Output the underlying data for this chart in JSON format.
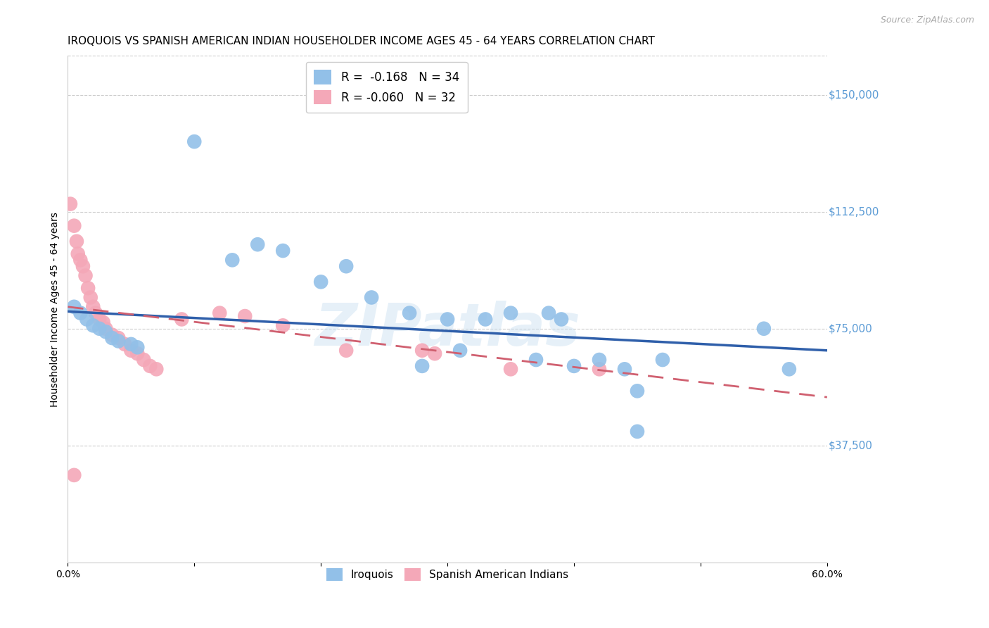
{
  "title": "IROQUOIS VS SPANISH AMERICAN INDIAN HOUSEHOLDER INCOME AGES 45 - 64 YEARS CORRELATION CHART",
  "source": "Source: ZipAtlas.com",
  "ylabel": "Householder Income Ages 45 - 64 years",
  "watermark": "ZIPatlas",
  "xlim": [
    0.0,
    0.6
  ],
  "ylim": [
    0,
    162500
  ],
  "yticks_right": [
    150000,
    112500,
    75000,
    37500
  ],
  "ytick_labels_right": [
    "$150,000",
    "$112,500",
    "$75,000",
    "$37,500"
  ],
  "blue_color": "#92c0e8",
  "pink_color": "#f4a8b8",
  "blue_line_color": "#2f5faa",
  "pink_line_color": "#d06070",
  "legend_R_blue": "-0.168",
  "legend_N_blue": "34",
  "legend_R_pink": "-0.060",
  "legend_N_pink": "32",
  "legend_label_blue": "Iroquois",
  "legend_label_pink": "Spanish American Indians",
  "blue_scatter_x": [
    0.005,
    0.01,
    0.015,
    0.02,
    0.025,
    0.03,
    0.035,
    0.04,
    0.05,
    0.055,
    0.1,
    0.13,
    0.15,
    0.17,
    0.2,
    0.22,
    0.24,
    0.27,
    0.28,
    0.3,
    0.31,
    0.33,
    0.35,
    0.37,
    0.38,
    0.39,
    0.4,
    0.42,
    0.44,
    0.45,
    0.47,
    0.55,
    0.57,
    0.45
  ],
  "blue_scatter_y": [
    82000,
    80000,
    78000,
    76000,
    75000,
    74000,
    72000,
    71000,
    70000,
    69000,
    135000,
    97000,
    102000,
    100000,
    90000,
    95000,
    85000,
    80000,
    63000,
    78000,
    68000,
    78000,
    80000,
    65000,
    80000,
    78000,
    63000,
    65000,
    62000,
    55000,
    65000,
    75000,
    62000,
    42000
  ],
  "pink_scatter_x": [
    0.002,
    0.005,
    0.007,
    0.008,
    0.01,
    0.012,
    0.014,
    0.016,
    0.018,
    0.02,
    0.022,
    0.025,
    0.028,
    0.03,
    0.035,
    0.04,
    0.045,
    0.05,
    0.055,
    0.06,
    0.065,
    0.07,
    0.09,
    0.12,
    0.14,
    0.17,
    0.22,
    0.28,
    0.29,
    0.35,
    0.42,
    0.005
  ],
  "pink_scatter_y": [
    115000,
    108000,
    103000,
    99000,
    97000,
    95000,
    92000,
    88000,
    85000,
    82000,
    80000,
    78000,
    77000,
    75000,
    73000,
    72000,
    70000,
    68000,
    67000,
    65000,
    63000,
    62000,
    78000,
    80000,
    79000,
    76000,
    68000,
    68000,
    67000,
    62000,
    62000,
    28000
  ],
  "grid_color": "#cccccc",
  "background_color": "#ffffff",
  "title_fontsize": 11,
  "axis_label_fontsize": 10,
  "tick_fontsize": 10,
  "legend_fontsize": 11,
  "right_label_color": "#5b9bd5"
}
